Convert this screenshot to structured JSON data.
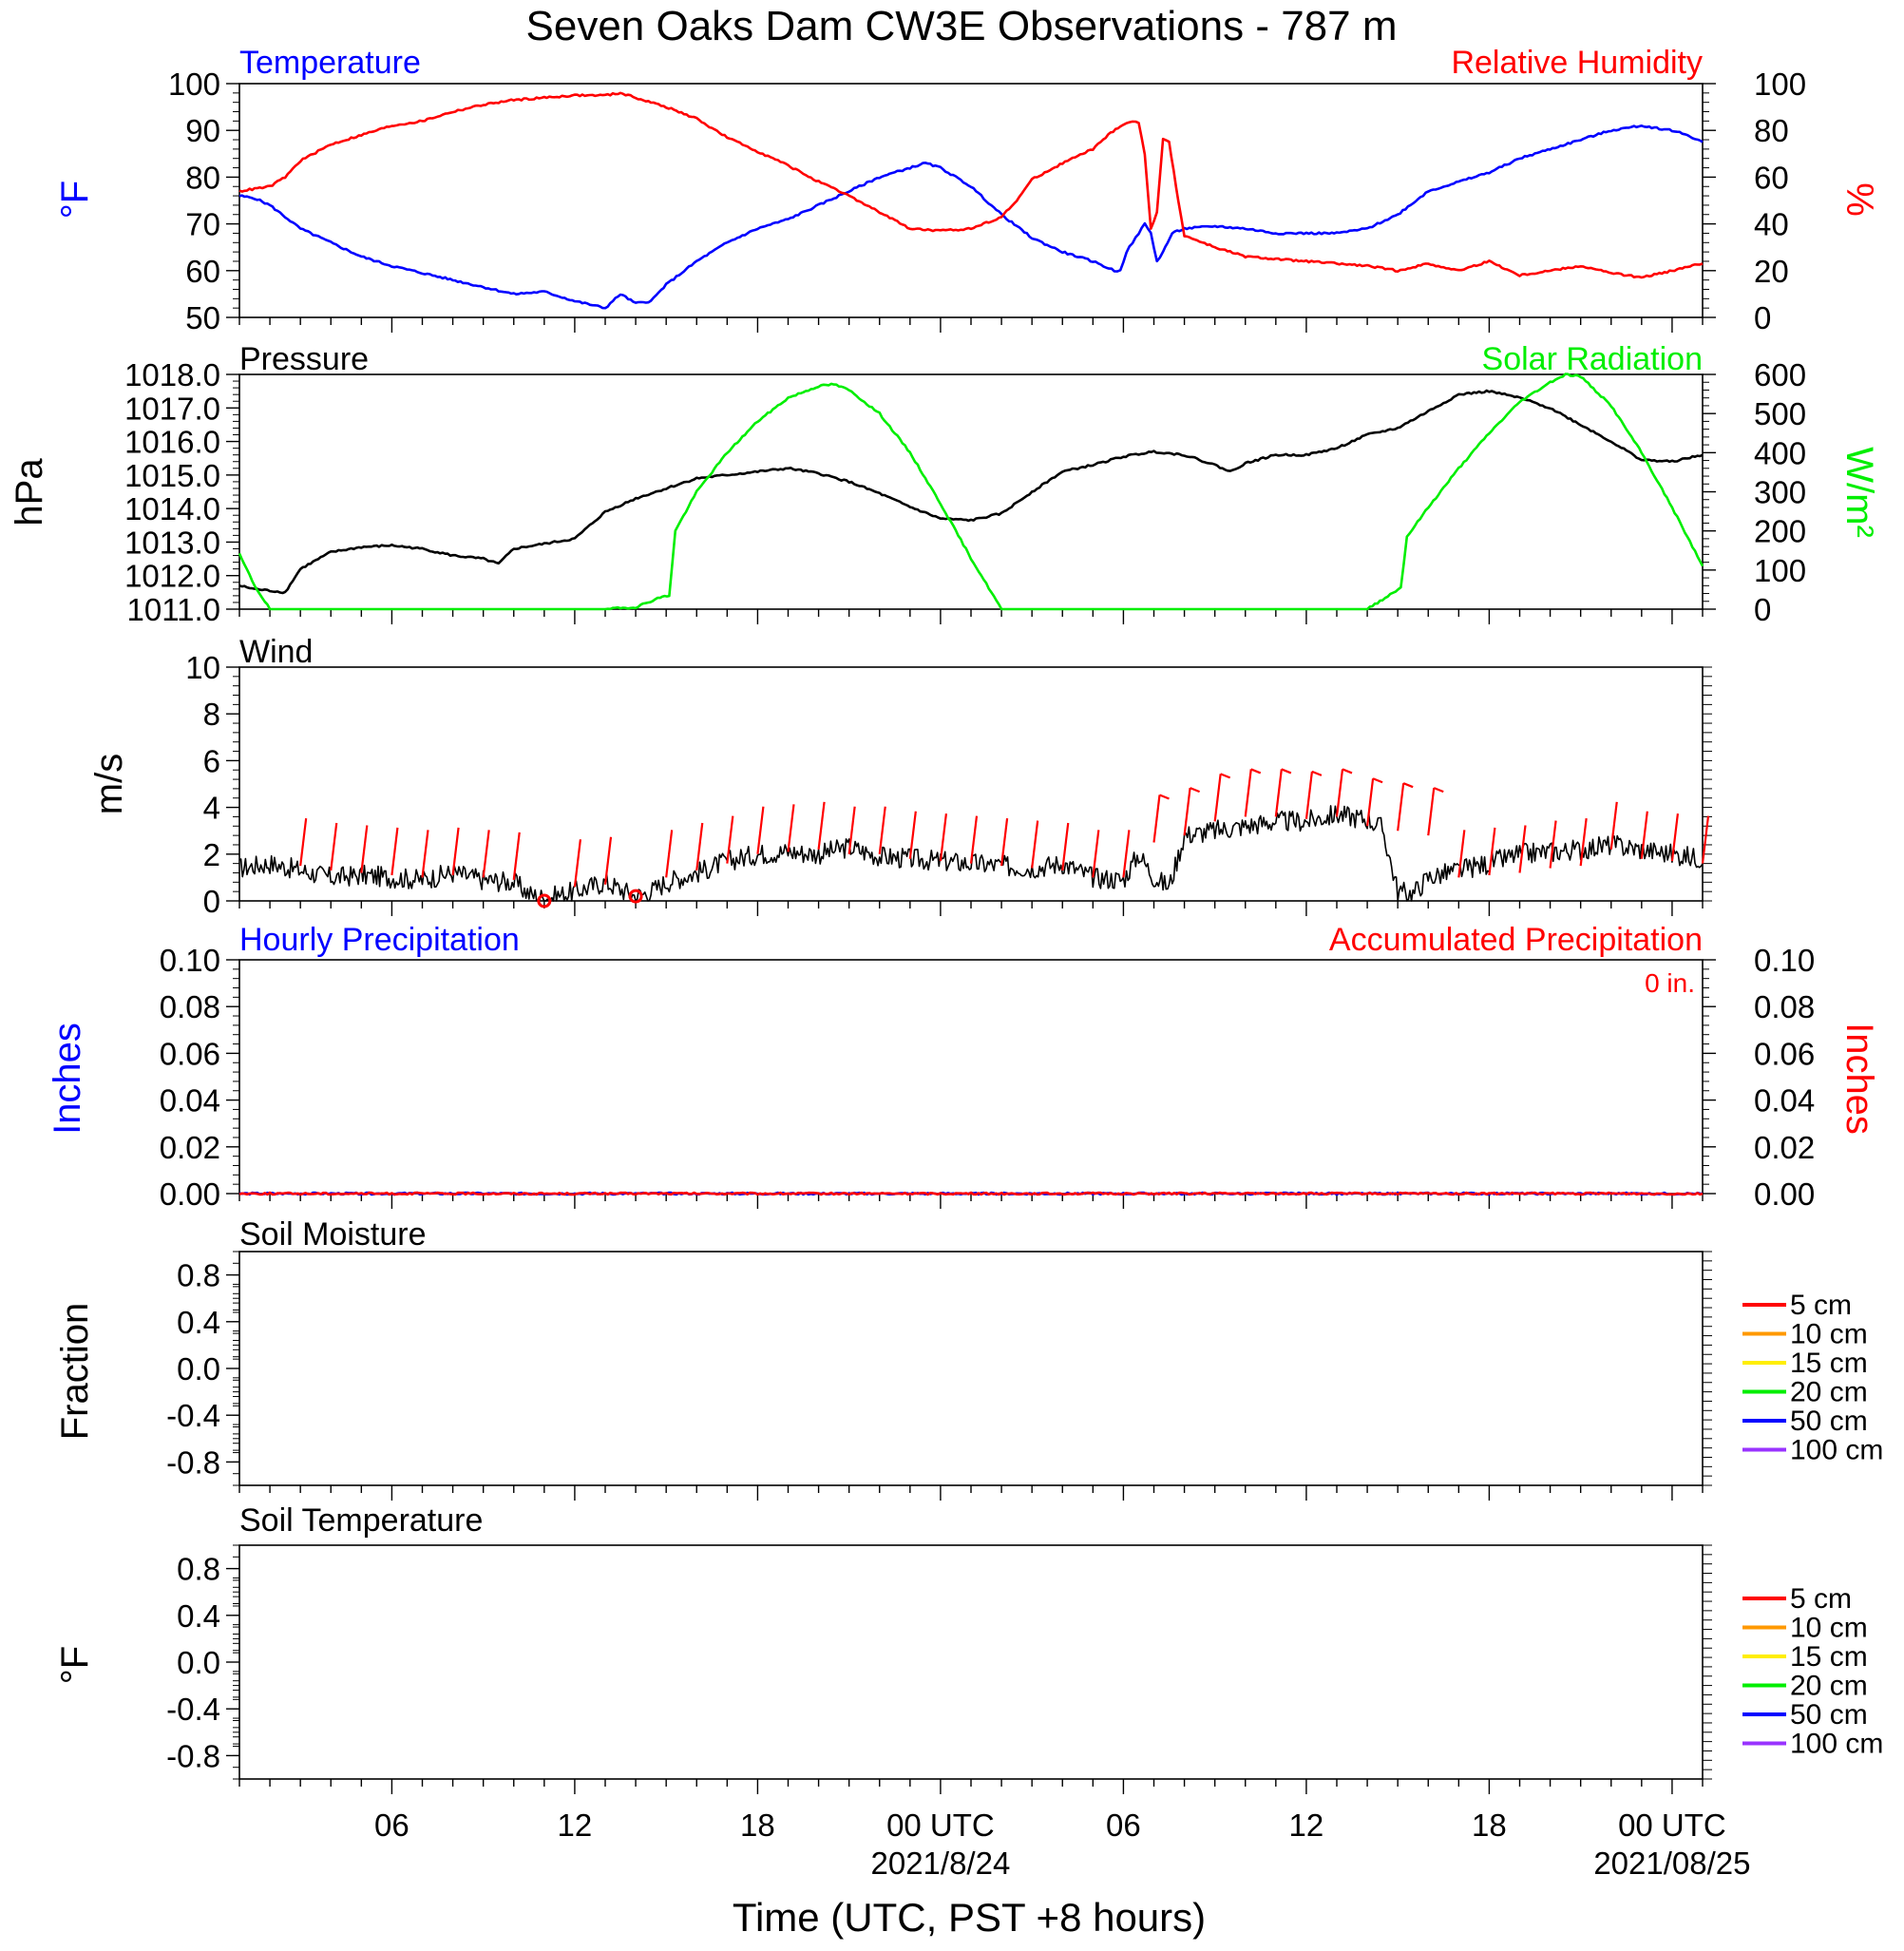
{
  "title": "Seven Oaks Dam CW3E Observations - 787 m",
  "xaxis": {
    "label": "Time (UTC, PST +8 hours)",
    "ticks": [
      {
        "hour": 6,
        "label": "06",
        "sub": ""
      },
      {
        "hour": 12,
        "label": "12",
        "sub": ""
      },
      {
        "hour": 18,
        "label": "18",
        "sub": ""
      },
      {
        "hour": 24,
        "label": "00 UTC",
        "sub": "2021/8/24"
      },
      {
        "hour": 30,
        "label": "06",
        "sub": ""
      },
      {
        "hour": 36,
        "label": "12",
        "sub": ""
      },
      {
        "hour": 42,
        "label": "18",
        "sub": ""
      },
      {
        "hour": 48,
        "label": "00 UTC",
        "sub": "2021/08/25"
      }
    ]
  },
  "colors": {
    "temperature": "#0000ff",
    "humidity": "#ff0000",
    "pressure": "#000000",
    "solar": "#00ee00",
    "wind": "#000000",
    "barb": "#ff0000",
    "hourly_precip": "#0000ff",
    "accum_precip": "#ff0000",
    "soil": [
      "#ff0000",
      "#ff9900",
      "#ffee00",
      "#00ee00",
      "#0000ff",
      "#9933ff"
    ]
  },
  "chart_data": [
    {
      "id": "temp_rh",
      "type": "line",
      "title_left": "Temperature",
      "title_right": "Relative Humidity",
      "ylabel_left": "°F",
      "ylabel_right": "%",
      "ylim_left": [
        50,
        100
      ],
      "ylim_right": [
        0,
        100
      ],
      "yticks_left": [
        "50",
        "60",
        "70",
        "80",
        "90",
        "100"
      ],
      "yticks_right": [
        "0",
        "20",
        "40",
        "60",
        "80",
        "100"
      ],
      "series": [
        {
          "name": "Temperature",
          "axis": "left",
          "x": [
            1,
            1.5,
            2,
            3,
            4,
            5,
            6,
            7,
            8,
            9,
            10,
            11,
            12,
            13,
            13.5,
            14,
            14.5,
            15,
            16,
            17,
            18,
            19,
            20,
            21,
            22,
            23,
            23.5,
            24,
            25,
            26,
            27,
            28,
            29,
            29.7,
            29.9,
            30.1,
            30.3,
            30.5,
            30.7,
            30.9,
            31.1,
            31.3,
            31.6,
            32,
            33,
            34,
            35,
            36,
            37,
            38,
            39,
            40,
            41,
            42,
            43,
            44,
            45,
            46,
            47,
            48,
            48.5,
            49
          ],
          "y": [
            76,
            75.5,
            74,
            69,
            66,
            63,
            61,
            59.5,
            58,
            56.5,
            55,
            55.5,
            53.5,
            52,
            55,
            53,
            53.5,
            57,
            62,
            66,
            69,
            71,
            74,
            77,
            80,
            82,
            83,
            82,
            78,
            72,
            67,
            64,
            62,
            60,
            60,
            64,
            66,
            68,
            70,
            68,
            62,
            64,
            68,
            69,
            69.5,
            69,
            68,
            68,
            68,
            69,
            72,
            77,
            79,
            81,
            84,
            86,
            88,
            90,
            91,
            90,
            89,
            87.5
          ]
        },
        {
          "name": "Relative Humidity",
          "axis": "right",
          "x": [
            1,
            2,
            2.5,
            3,
            4,
            5,
            6,
            7,
            8,
            9,
            10,
            11,
            12,
            13,
            13.5,
            14,
            15,
            16,
            17,
            18,
            19,
            20,
            21,
            22,
            23,
            24,
            25,
            26,
            26.5,
            27,
            28,
            29,
            29.5,
            29.9,
            30.1,
            30.3,
            30.5,
            30.7,
            30.9,
            31.1,
            31.3,
            31.5,
            31.8,
            32,
            33,
            34,
            35,
            36,
            37,
            38,
            39,
            40,
            41,
            42,
            43,
            44,
            45,
            46,
            47,
            48,
            49
          ],
          "y": [
            54,
            56,
            60,
            67,
            74,
            78,
            82,
            84,
            88,
            91,
            93,
            94,
            95,
            95,
            96,
            94,
            90,
            85,
            77,
            71,
            65,
            58,
            52,
            45,
            38,
            37,
            38,
            43,
            50,
            59,
            66,
            72,
            78,
            82,
            83,
            84,
            83,
            70,
            38,
            45,
            76,
            75,
            50,
            35,
            30,
            26,
            25,
            24,
            23,
            22,
            20,
            23,
            20,
            24,
            18,
            20,
            22,
            19,
            17,
            20,
            23
          ]
        }
      ]
    },
    {
      "id": "pressure_solar",
      "type": "line",
      "title_left": "Pressure",
      "title_right": "Solar Radiation",
      "ylabel_left": "hPa",
      "ylabel_right": "W/m²",
      "ylim_left": [
        1011,
        1018
      ],
      "ylim_right": [
        0,
        600
      ],
      "yticks_left": [
        "1011.0",
        "1012.0",
        "1013.0",
        "1014.0",
        "1015.0",
        "1016.0",
        "1017.0",
        "1018.0"
      ],
      "yticks_right": [
        "0",
        "100",
        "200",
        "300",
        "400",
        "500",
        "600"
      ],
      "series": [
        {
          "name": "Pressure",
          "axis": "left",
          "x": [
            1,
            1.5,
            2,
            2.5,
            3,
            4,
            5,
            6,
            7,
            8,
            9,
            9.5,
            10,
            11,
            12,
            13,
            14,
            15,
            16,
            17,
            18,
            19,
            20,
            21,
            22,
            23,
            24,
            25,
            26,
            27,
            28,
            29,
            30,
            31,
            32,
            33,
            33.5,
            34,
            35,
            36,
            37,
            38,
            39,
            40,
            41,
            42,
            43,
            44,
            45,
            46,
            47,
            48,
            49
          ],
          "y": [
            1011.7,
            1011.6,
            1011.55,
            1011.5,
            1012.2,
            1012.7,
            1012.85,
            1012.9,
            1012.8,
            1012.6,
            1012.5,
            1012.35,
            1012.8,
            1012.95,
            1013.1,
            1013.9,
            1014.3,
            1014.6,
            1014.9,
            1015.0,
            1015.1,
            1015.2,
            1015.05,
            1014.8,
            1014.45,
            1014.05,
            1013.7,
            1013.65,
            1013.85,
            1014.5,
            1015.1,
            1015.3,
            1015.55,
            1015.7,
            1015.6,
            1015.3,
            1015.1,
            1015.35,
            1015.6,
            1015.6,
            1015.8,
            1016.2,
            1016.4,
            1016.9,
            1017.4,
            1017.5,
            1017.3,
            1017.0,
            1016.5,
            1016.0,
            1015.45,
            1015.4,
            1015.6
          ]
        },
        {
          "name": "Solar Radiation",
          "axis": "right",
          "x": [
            1,
            1.5,
            2,
            2.5,
            12,
            13,
            14,
            14.8,
            15.1,
            15.3,
            16,
            17,
            18,
            19,
            20,
            20.5,
            21,
            22,
            23,
            24,
            25,
            26,
            27,
            38,
            38.5,
            39.1,
            39.3,
            40,
            41,
            42,
            43,
            44,
            44.5,
            45,
            46,
            47,
            48,
            49
          ],
          "y": [
            140,
            60,
            0,
            0,
            0,
            0,
            5,
            30,
            35,
            200,
            300,
            400,
            480,
            540,
            570,
            575,
            560,
            500,
            400,
            270,
            130,
            0,
            0,
            0,
            25,
            55,
            185,
            260,
            360,
            450,
            530,
            580,
            600,
            595,
            520,
            400,
            260,
            110
          ]
        }
      ]
    },
    {
      "id": "wind",
      "type": "line",
      "title_left": "Wind",
      "ylabel_left": "m/s",
      "ylim_left": [
        0,
        10
      ],
      "yticks_left": [
        "0",
        "2",
        "4",
        "6",
        "8",
        "10"
      ],
      "series": [
        {
          "name": "Wind",
          "axis": "left",
          "x": [
            1,
            2,
            3,
            4,
            5,
            6,
            7,
            8,
            9,
            10,
            10.5,
            11,
            12,
            13,
            14,
            14.5,
            15,
            16,
            17,
            18,
            19,
            20,
            21,
            22,
            23,
            24,
            25,
            26,
            27,
            28,
            29,
            30,
            30.5,
            31,
            31.5,
            32,
            33,
            34,
            35,
            36,
            37,
            38,
            38.5,
            39,
            39.5,
            40,
            41,
            42,
            43,
            44,
            45,
            46,
            47,
            48,
            49
          ],
          "y": [
            1.4,
            1.6,
            1.3,
            1.0,
            1.1,
            1.0,
            0.9,
            1.2,
            0.9,
            0.8,
            0.3,
            0.1,
            0.4,
            0.8,
            0.2,
            0.4,
            0.8,
            1.2,
            1.7,
            2.0,
            2.1,
            2.0,
            2.3,
            1.9,
            1.8,
            1.7,
            1.6,
            1.5,
            1.4,
            1.6,
            1.0,
            0.9,
            2.0,
            1.0,
            0.6,
            2.8,
            3.0,
            3.2,
            3.4,
            3.4,
            3.7,
            3.5,
            3.1,
            0.4,
            0.3,
            1.0,
            1.3,
            1.6,
            2.0,
            2.1,
            2.2,
            2.4,
            2.2,
            2.0,
            1.8
          ],
          "noise": 0.45
        }
      ],
      "barbs": [
        {
          "x": 3,
          "speed": 1.5
        },
        {
          "x": 4,
          "speed": 1.3
        },
        {
          "x": 5,
          "speed": 1.2
        },
        {
          "x": 6,
          "speed": 1.1
        },
        {
          "x": 7,
          "speed": 1.0
        },
        {
          "x": 8,
          "speed": 1.1
        },
        {
          "x": 9,
          "speed": 1.0
        },
        {
          "x": 10,
          "speed": 0.9
        },
        {
          "x": 11,
          "speed": 0.0,
          "calm": true
        },
        {
          "x": 12,
          "speed": 0.6
        },
        {
          "x": 13,
          "speed": 0.7
        },
        {
          "x": 14,
          "speed": 0.2,
          "calm": true
        },
        {
          "x": 15,
          "speed": 1.0
        },
        {
          "x": 16,
          "speed": 1.3
        },
        {
          "x": 17,
          "speed": 1.6
        },
        {
          "x": 18,
          "speed": 2.0
        },
        {
          "x": 19,
          "speed": 2.1
        },
        {
          "x": 20,
          "speed": 2.2
        },
        {
          "x": 21,
          "speed": 2.0
        },
        {
          "x": 22,
          "speed": 2.0
        },
        {
          "x": 23,
          "speed": 1.8
        },
        {
          "x": 24,
          "speed": 1.7
        },
        {
          "x": 25,
          "speed": 1.6
        },
        {
          "x": 26,
          "speed": 1.5
        },
        {
          "x": 27,
          "speed": 1.4
        },
        {
          "x": 28,
          "speed": 1.3
        },
        {
          "x": 29,
          "speed": 1.0
        },
        {
          "x": 30,
          "speed": 1.0
        },
        {
          "x": 31,
          "speed": 2.5
        },
        {
          "x": 32,
          "speed": 2.8
        },
        {
          "x": 33,
          "speed": 3.4
        },
        {
          "x": 34,
          "speed": 3.6
        },
        {
          "x": 35,
          "speed": 3.6
        },
        {
          "x": 36,
          "speed": 3.5
        },
        {
          "x": 37,
          "speed": 3.6
        },
        {
          "x": 38,
          "speed": 3.2
        },
        {
          "x": 39,
          "speed": 3.0
        },
        {
          "x": 40,
          "speed": 2.8
        },
        {
          "x": 41,
          "speed": 1.0
        },
        {
          "x": 42,
          "speed": 1.1
        },
        {
          "x": 43,
          "speed": 1.2
        },
        {
          "x": 44,
          "speed": 1.4
        },
        {
          "x": 45,
          "speed": 1.5
        },
        {
          "x": 46,
          "speed": 2.2
        },
        {
          "x": 47,
          "speed": 1.8
        },
        {
          "x": 48,
          "speed": 1.7
        },
        {
          "x": 49,
          "speed": 1.6
        }
      ]
    },
    {
      "id": "precip",
      "type": "line",
      "title_left": "Hourly Precipitation",
      "title_right": "Accumulated Precipitation",
      "annotation": "0 in.",
      "ylabel_left": "Inches",
      "ylabel_right": "Inches",
      "ylim_left": [
        0,
        0.1
      ],
      "ylim_right": [
        0,
        0.1
      ],
      "yticks_left": [
        "0.00",
        "0.02",
        "0.04",
        "0.06",
        "0.08",
        "0.10"
      ],
      "yticks_right": [
        "0.00",
        "0.02",
        "0.04",
        "0.06",
        "0.08",
        "0.10"
      ],
      "series": [
        {
          "name": "Hourly Precipitation",
          "axis": "left",
          "x": [
            1,
            49
          ],
          "y": [
            0,
            0
          ]
        },
        {
          "name": "Accumulated Precipitation",
          "axis": "right",
          "x": [
            1,
            49
          ],
          "y": [
            0,
            0
          ]
        }
      ]
    },
    {
      "id": "soil_moisture",
      "type": "line",
      "title_left": "Soil Moisture",
      "ylabel_left": "Fraction",
      "ylim_left": [
        -1,
        1
      ],
      "yticks_left": [
        "-0.8",
        "-0.4",
        "0.0",
        "0.4",
        "0.8"
      ],
      "legend": [
        "5 cm",
        "10 cm",
        "15 cm",
        "20 cm",
        "50 cm",
        "100 cm"
      ],
      "series": []
    },
    {
      "id": "soil_temperature",
      "type": "line",
      "title_left": "Soil Temperature",
      "ylabel_left": "°F",
      "ylim_left": [
        -1,
        1
      ],
      "yticks_left": [
        "-0.8",
        "-0.4",
        "0.0",
        "0.4",
        "0.8"
      ],
      "legend": [
        "5 cm",
        "10 cm",
        "15 cm",
        "20 cm",
        "50 cm",
        "100 cm"
      ],
      "series": []
    }
  ]
}
